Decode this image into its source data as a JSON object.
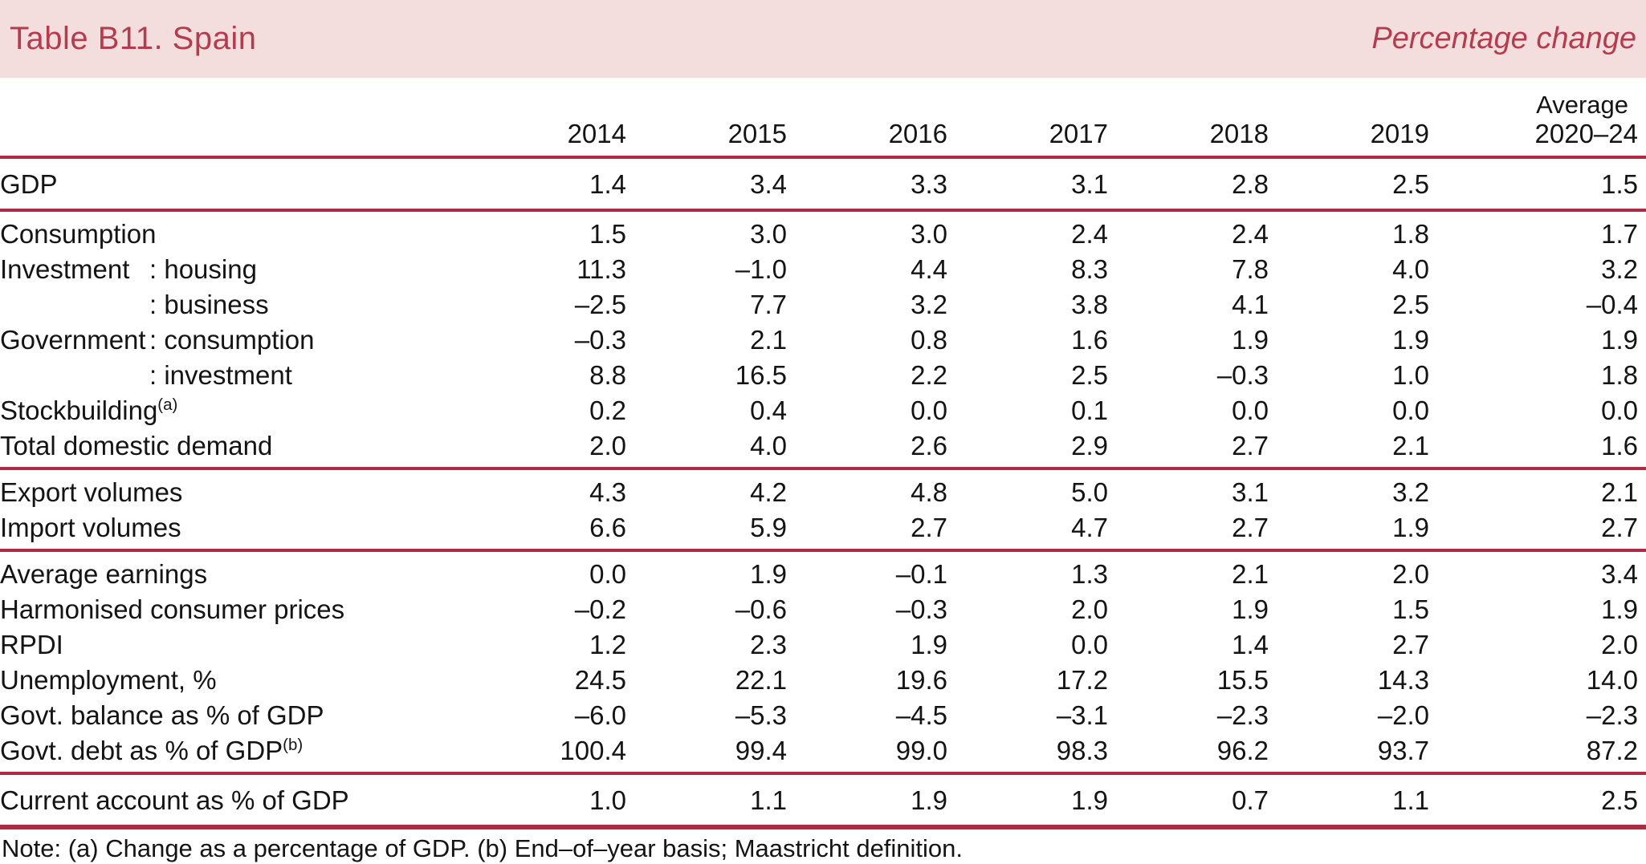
{
  "header": {
    "title": "Table B11. Spain",
    "units_label": "Percentage change"
  },
  "colors": {
    "band_bg": "#f3dedd",
    "accent_text": "#b33c4e",
    "rule": "#ad2b43"
  },
  "table": {
    "columns": [
      {
        "top": "",
        "label": "2014"
      },
      {
        "top": "",
        "label": "2015"
      },
      {
        "top": "",
        "label": "2016"
      },
      {
        "top": "",
        "label": "2017"
      },
      {
        "top": "",
        "label": "2018"
      },
      {
        "top": "",
        "label": "2019"
      },
      {
        "top": "Average",
        "label": "2020–24"
      }
    ],
    "sections": [
      {
        "rows": [
          {
            "label": "GDP",
            "values": [
              "1.4",
              "3.4",
              "3.3",
              "3.1",
              "2.8",
              "2.5",
              "1.5"
            ]
          }
        ]
      },
      {
        "rows": [
          {
            "label": "Consumption",
            "values": [
              "1.5",
              "3.0",
              "3.0",
              "2.4",
              "2.4",
              "1.8",
              "1.7"
            ]
          },
          {
            "prefix": "Investment",
            "sub": ": housing",
            "values": [
              "11.3",
              "–1.0",
              "4.4",
              "8.3",
              "7.8",
              "4.0",
              "3.2"
            ]
          },
          {
            "prefix": "",
            "sub": ": business",
            "values": [
              "–2.5",
              "7.7",
              "3.2",
              "3.8",
              "4.1",
              "2.5",
              "–0.4"
            ]
          },
          {
            "prefix": "Government",
            "sub": ": consumption",
            "values": [
              "–0.3",
              "2.1",
              "0.8",
              "1.6",
              "1.9",
              "1.9",
              "1.9"
            ]
          },
          {
            "prefix": "",
            "sub": ": investment",
            "values": [
              "8.8",
              "16.5",
              "2.2",
              "2.5",
              "–0.3",
              "1.0",
              "1.8"
            ]
          },
          {
            "label": "Stockbuilding",
            "sup": "(a)",
            "values": [
              "0.2",
              "0.4",
              "0.0",
              "0.1",
              "0.0",
              "0.0",
              "0.0"
            ]
          },
          {
            "label": "Total domestic demand",
            "values": [
              "2.0",
              "4.0",
              "2.6",
              "2.9",
              "2.7",
              "2.1",
              "1.6"
            ]
          }
        ]
      },
      {
        "rows": [
          {
            "label": "Export volumes",
            "values": [
              "4.3",
              "4.2",
              "4.8",
              "5.0",
              "3.1",
              "3.2",
              "2.1"
            ]
          },
          {
            "label": "Import volumes",
            "values": [
              "6.6",
              "5.9",
              "2.7",
              "4.7",
              "2.7",
              "1.9",
              "2.7"
            ]
          }
        ]
      },
      {
        "rows": [
          {
            "label": "Average earnings",
            "values": [
              "0.0",
              "1.9",
              "–0.1",
              "1.3",
              "2.1",
              "2.0",
              "3.4"
            ]
          },
          {
            "label": "Harmonised consumer prices",
            "values": [
              "–0.2",
              "–0.6",
              "–0.3",
              "2.0",
              "1.9",
              "1.5",
              "1.9"
            ]
          },
          {
            "label": "RPDI",
            "values": [
              "1.2",
              "2.3",
              "1.9",
              "0.0",
              "1.4",
              "2.7",
              "2.0"
            ]
          },
          {
            "label": "Unemployment, %",
            "values": [
              "24.5",
              "22.1",
              "19.6",
              "17.2",
              "15.5",
              "14.3",
              "14.0"
            ]
          },
          {
            "label": "Govt. balance as % of GDP",
            "values": [
              "–6.0",
              "–5.3",
              "–4.5",
              "–3.1",
              "–2.3",
              "–2.0",
              "–2.3"
            ]
          },
          {
            "label": "Govt. debt as % of GDP",
            "sup": "(b)",
            "values": [
              "100.4",
              "99.4",
              "99.0",
              "98.3",
              "96.2",
              "93.7",
              "87.2"
            ]
          }
        ]
      },
      {
        "rows": [
          {
            "label": "Current account as % of GDP",
            "values": [
              "1.0",
              "1.1",
              "1.9",
              "1.9",
              "0.7",
              "1.1",
              "2.5"
            ]
          }
        ]
      }
    ]
  },
  "note": "Note: (a) Change as a percentage of GDP. (b) End–of–year basis; Maastricht definition."
}
